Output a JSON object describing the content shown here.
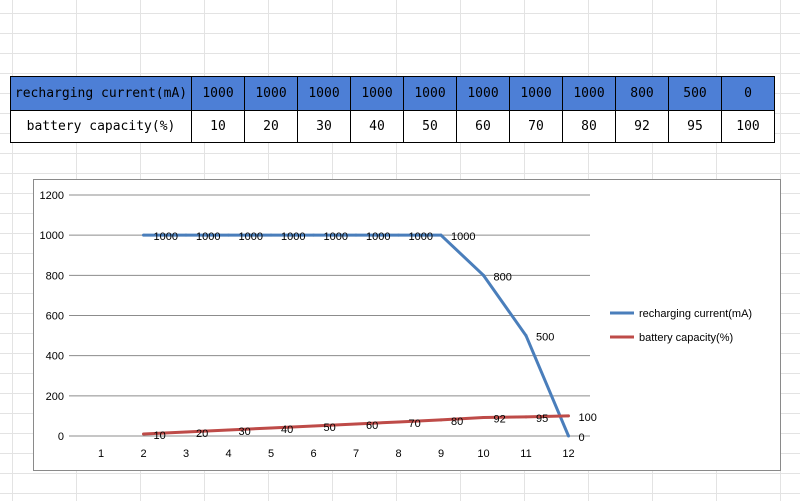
{
  "table": {
    "rows": [
      {
        "label": "recharging current(mA)",
        "values": [
          "1000",
          "1000",
          "1000",
          "1000",
          "1000",
          "1000",
          "1000",
          "1000",
          "800",
          "500",
          "0"
        ]
      },
      {
        "label": "battery capacity(%)",
        "values": [
          "10",
          "20",
          "30",
          "40",
          "50",
          "60",
          "70",
          "80",
          "92",
          "95",
          "100"
        ]
      }
    ]
  },
  "chart_data": {
    "type": "line",
    "x": [
      1,
      2,
      3,
      4,
      5,
      6,
      7,
      8,
      9,
      10,
      11,
      12
    ],
    "xlim": [
      1,
      12
    ],
    "ylim": [
      0,
      1200
    ],
    "yticks": [
      0,
      200,
      400,
      600,
      800,
      1000,
      1200
    ],
    "grid": true,
    "legend_position": "right",
    "series": [
      {
        "name": "recharging current(mA)",
        "color": "#4a7ebb",
        "x": [
          2,
          3,
          4,
          5,
          6,
          7,
          8,
          9,
          10,
          11,
          12
        ],
        "values": [
          1000,
          1000,
          1000,
          1000,
          1000,
          1000,
          1000,
          1000,
          800,
          500,
          0
        ],
        "labels": [
          "1000",
          "1000",
          "1000",
          "1000",
          "1000",
          "1000",
          "1000",
          "1000",
          "800",
          "500",
          "0"
        ]
      },
      {
        "name": "battery capacity(%)",
        "color": "#be4b48",
        "x": [
          2,
          3,
          4,
          5,
          6,
          7,
          8,
          9,
          10,
          11,
          12
        ],
        "values": [
          10,
          20,
          30,
          40,
          50,
          60,
          70,
          80,
          92,
          95,
          100
        ],
        "labels": [
          "10",
          "20",
          "30",
          "40",
          "50",
          "60",
          "70",
          "80",
          "92",
          "95",
          "100"
        ]
      }
    ]
  }
}
